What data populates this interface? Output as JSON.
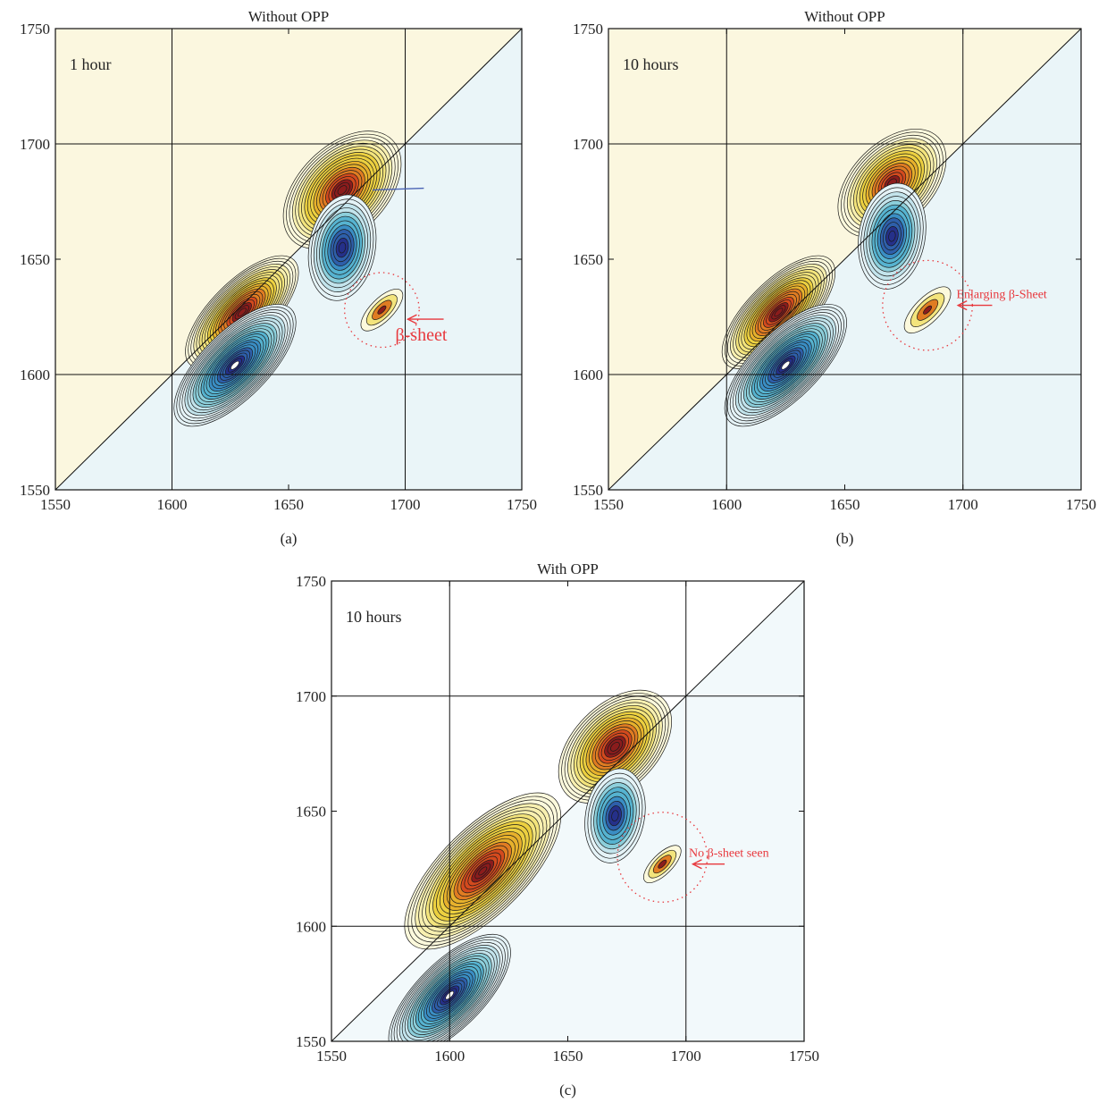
{
  "chart_data": [
    {
      "id": "a",
      "type": "heatmap",
      "subtype": "2D correlation contour map",
      "title": "Without OPP",
      "panel_label": "(a)",
      "annotation": "1 hour",
      "xlim": [
        1550,
        1750
      ],
      "ylim": [
        1550,
        1750
      ],
      "xticks": [
        1550,
        1600,
        1650,
        1700,
        1750
      ],
      "yticks": [
        1550,
        1600,
        1650,
        1700,
        1750
      ],
      "gridlines": [
        1600,
        1700
      ],
      "diagonal": true,
      "peaks": [
        {
          "x": 1673,
          "y": 1680,
          "sign": "positive",
          "amplitude": 0.85
        },
        {
          "x": 1630,
          "y": 1627,
          "sign": "positive",
          "amplitude": 0.9
        },
        {
          "x": 1627,
          "y": 1604,
          "sign": "negative",
          "amplitude": 1.0
        },
        {
          "x": 1673,
          "y": 1655,
          "sign": "negative",
          "amplitude": 0.55
        },
        {
          "x": 1690,
          "y": 1628,
          "sign": "positive",
          "amplitude": 0.1
        }
      ],
      "callouts": [
        {
          "text": "β-sheet",
          "x": 1705,
          "y": 1624
        }
      ],
      "dotted_circle": {
        "x": 1690,
        "y": 1628,
        "r": 16
      }
    },
    {
      "id": "b",
      "type": "heatmap",
      "subtype": "2D correlation contour map",
      "title": "Without OPP",
      "panel_label": "(b)",
      "annotation": "10 hours",
      "xlim": [
        1550,
        1750
      ],
      "ylim": [
        1550,
        1750
      ],
      "xticks": [
        1550,
        1600,
        1650,
        1700,
        1750
      ],
      "yticks": [
        1550,
        1600,
        1650,
        1700,
        1750
      ],
      "gridlines": [
        1600,
        1700
      ],
      "diagonal": true,
      "peaks": [
        {
          "x": 1670,
          "y": 1683,
          "sign": "positive",
          "amplitude": 0.75
        },
        {
          "x": 1622,
          "y": 1627,
          "sign": "positive",
          "amplitude": 0.9
        },
        {
          "x": 1625,
          "y": 1604,
          "sign": "negative",
          "amplitude": 1.0
        },
        {
          "x": 1670,
          "y": 1660,
          "sign": "negative",
          "amplitude": 0.55
        },
        {
          "x": 1685,
          "y": 1628,
          "sign": "positive",
          "amplitude": 0.15
        }
      ],
      "callouts": [
        {
          "text": "Enlarging β-Sheet",
          "x": 1698,
          "y": 1630
        }
      ],
      "dotted_circle": {
        "x": 1685,
        "y": 1630,
        "r": 19
      }
    },
    {
      "id": "c",
      "type": "heatmap",
      "subtype": "2D correlation contour map",
      "title": "With OPP",
      "panel_label": "(c)",
      "annotation": "10 hours",
      "xlim": [
        1550,
        1750
      ],
      "ylim": [
        1550,
        1750
      ],
      "xticks": [
        1550,
        1600,
        1650,
        1700,
        1750
      ],
      "yticks": [
        1550,
        1600,
        1650,
        1700,
        1750
      ],
      "gridlines": [
        1600,
        1700
      ],
      "diagonal": true,
      "peaks": [
        {
          "x": 1670,
          "y": 1678,
          "sign": "positive",
          "amplitude": 0.8
        },
        {
          "x": 1614,
          "y": 1624,
          "sign": "positive",
          "amplitude": 1.0
        },
        {
          "x": 1600,
          "y": 1570,
          "sign": "negative",
          "amplitude": 1.0
        },
        {
          "x": 1670,
          "y": 1648,
          "sign": "negative",
          "amplitude": 0.45
        },
        {
          "x": 1690,
          "y": 1627,
          "sign": "positive",
          "amplitude": 0.05
        }
      ],
      "callouts": [
        {
          "text": "No β-sheet seen",
          "x": 1702,
          "y": 1627
        }
      ],
      "dotted_circle": {
        "x": 1690,
        "y": 1630,
        "r": 19
      }
    }
  ],
  "colors": {
    "positive": [
      "#fcf9dc",
      "#f8f0b0",
      "#f3e47c",
      "#ecd040",
      "#e7b12c",
      "#e07c22",
      "#d34a1e",
      "#8b1c1c"
    ],
    "negative": [
      "#e5f3f7",
      "#c3e4ec",
      "#8ccfdb",
      "#56b3d0",
      "#3a8ec4",
      "#2e5faa",
      "#25308a"
    ],
    "annotation": "#e8383d",
    "arrow_blue": "#4a63b5"
  }
}
